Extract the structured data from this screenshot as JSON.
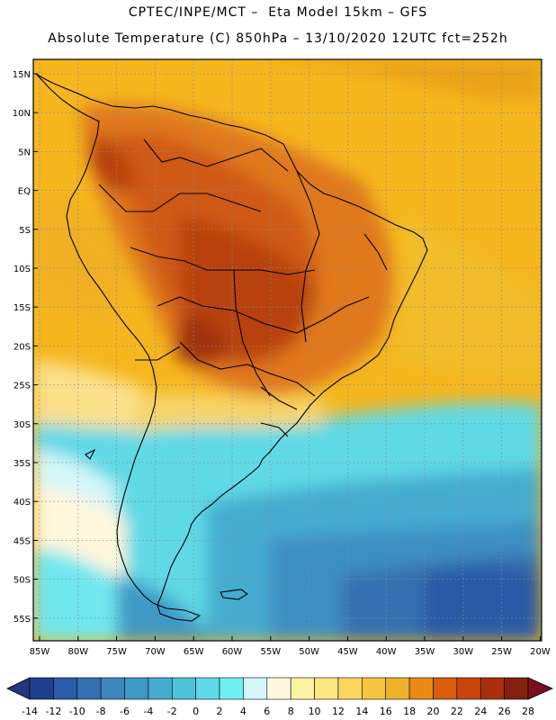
{
  "header": {
    "line1": "CPTEC/INPE/MCT –  Eta Model 15km – GFS",
    "line2": "Absolute Temperature (C) 850hPa – 13/10/2020 12UTC fct=252h"
  },
  "axes": {
    "lat_labels": [
      "15N",
      "10N",
      "5N",
      "EQ",
      "5S",
      "10S",
      "15S",
      "20S",
      "25S",
      "30S",
      "35S",
      "40S",
      "45S",
      "50S",
      "55S"
    ],
    "lon_labels": [
      "85W",
      "80W",
      "75W",
      "70W",
      "65W",
      "60W",
      "55W",
      "50W",
      "45W",
      "40W",
      "35W",
      "30W",
      "25W",
      "20W"
    ]
  },
  "colorbar": {
    "labels": [
      "-14",
      "-12",
      "-10",
      "-8",
      "-6",
      "-4",
      "-2",
      "0",
      "2",
      "4",
      "6",
      "8",
      "10",
      "12",
      "14",
      "16",
      "18",
      "20",
      "22",
      "24",
      "26",
      "28"
    ],
    "colors": [
      "#1f3f8f",
      "#2b5aa6",
      "#3470b0",
      "#3d86bd",
      "#3c99c5",
      "#44acd0",
      "#4fc2db",
      "#5fd9e6",
      "#6ff0f0",
      "#d4f6fa",
      "#fff8e0",
      "#fff2a0",
      "#ffe780",
      "#fbd660",
      "#f5c542",
      "#eeb12a",
      "#e88a14",
      "#d85d0c",
      "#c8450c",
      "#a8300c",
      "#86200e"
    ],
    "under_color": "#23367f",
    "over_color": "#7a0f20"
  }
}
